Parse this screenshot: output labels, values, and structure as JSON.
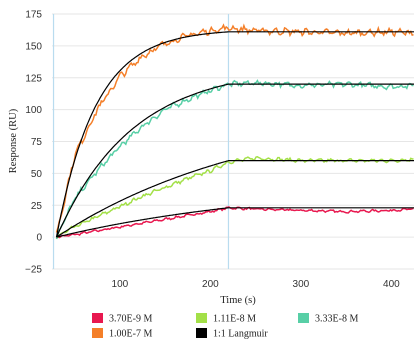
{
  "chart_data": {
    "type": "line",
    "title": "",
    "xlabel": "Time (s)",
    "ylabel": "Response (RU)",
    "xlim": [
      25,
      425
    ],
    "ylim": [
      -25,
      175
    ],
    "x_ticks": [
      100,
      200,
      300,
      400
    ],
    "y_ticks": [
      -25,
      0,
      25,
      50,
      75,
      100,
      125,
      150,
      175
    ],
    "y_tick_labels": [
      "−25",
      "0",
      "25",
      "50",
      "75",
      "100",
      "125",
      "150",
      "175"
    ],
    "grid": "horizontal",
    "legend_position": "bottom",
    "injection_start": 30,
    "injection_end": 220,
    "series": [
      {
        "name": "3.70E-9 M",
        "color": "#e8184f",
        "kind": "measured",
        "plateau": 23,
        "x": [
          30,
          50,
          75,
          100,
          125,
          150,
          175,
          200,
          220,
          250,
          300,
          350,
          400,
          425
        ],
        "values": [
          0,
          2,
          5,
          8,
          11,
          14,
          17,
          20,
          23,
          22,
          21,
          20,
          21,
          22
        ]
      },
      {
        "name": "1.11E-8 M",
        "color": "#a3e048",
        "kind": "measured",
        "plateau": 61,
        "x": [
          30,
          50,
          75,
          100,
          125,
          150,
          175,
          200,
          220,
          250,
          300,
          350,
          400,
          425
        ],
        "values": [
          0,
          8,
          16,
          24,
          32,
          39,
          46,
          52,
          59,
          62,
          60,
          60,
          60,
          61
        ]
      },
      {
        "name": "3.33E-8 M",
        "color": "#58cfa6",
        "kind": "measured",
        "plateau": 120,
        "x": [
          30,
          50,
          75,
          100,
          125,
          150,
          175,
          200,
          220,
          250,
          300,
          350,
          400,
          425
        ],
        "values": [
          0,
          30,
          52,
          71,
          87,
          100,
          108,
          115,
          120,
          121,
          119,
          120,
          118,
          119
        ]
      },
      {
        "name": "1.00E-7 M",
        "color": "#f47f29",
        "kind": "measured",
        "plateau": 161,
        "x": [
          30,
          50,
          75,
          100,
          125,
          150,
          175,
          200,
          220,
          250,
          300,
          350,
          400,
          425
        ],
        "values": [
          2,
          64,
          100,
          126,
          142,
          152,
          158,
          162,
          164,
          162,
          161,
          160,
          161,
          160
        ]
      },
      {
        "name": "1:1 Langmuir",
        "color": "#000000",
        "kind": "fit",
        "plateaus": [
          23,
          60,
          120,
          161
        ],
        "rates": [
          0.004,
          0.0045,
          0.012,
          0.023
        ]
      }
    ],
    "legend": [
      {
        "label": "3.70E-9 M",
        "color": "#e8184f"
      },
      {
        "label": "1.11E-8 M",
        "color": "#a3e048"
      },
      {
        "label": "3.33E-8 M",
        "color": "#58cfa6"
      },
      {
        "label": "1.00E-7 M",
        "color": "#f47f29"
      },
      {
        "label": "1:1 Langmuir",
        "color": "#000000"
      }
    ]
  }
}
